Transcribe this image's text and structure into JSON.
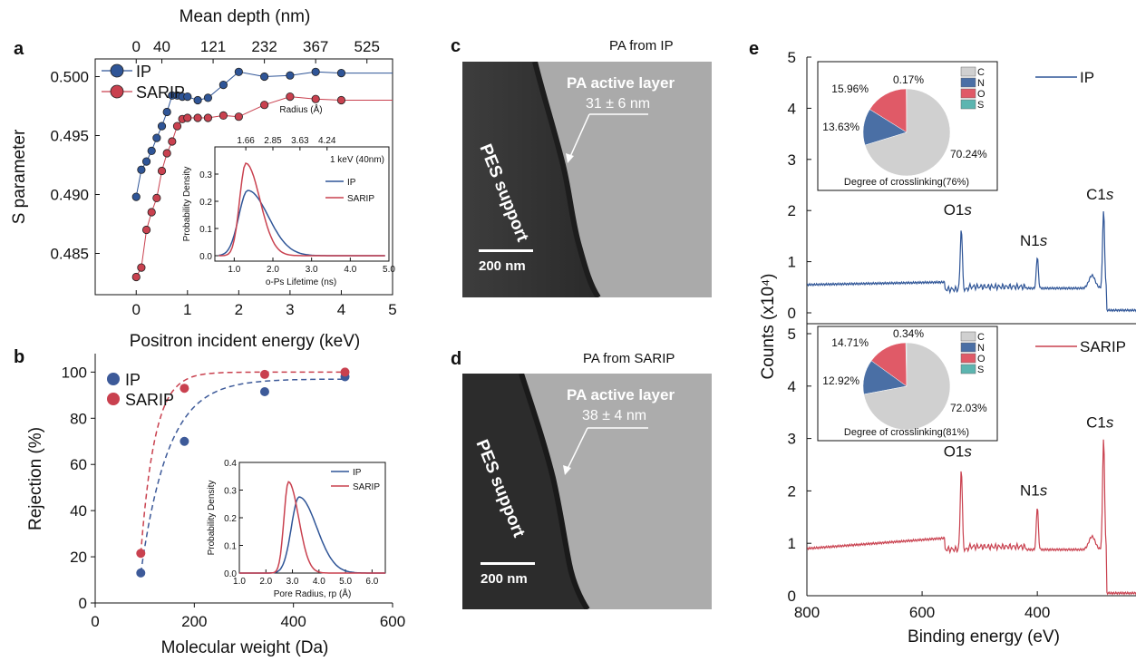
{
  "panels": {
    "a": {
      "letter": "a",
      "top_axis_label": "Mean depth (nm)",
      "top_ticks": [
        "0",
        "40",
        "121",
        "232",
        "367",
        "525"
      ],
      "xlabel": "Positron incident energy (keV)",
      "ylabel": "S parameter",
      "legend": [
        "IP",
        "SARIP"
      ]
    },
    "b": {
      "letter": "b",
      "xlabel": "Molecular weight (Da)",
      "ylabel": "Rejection (%)",
      "legend": [
        "IP",
        "SARIP"
      ]
    },
    "c": {
      "letter": "c",
      "title": "PA from IP",
      "layer_label": "PA active layer",
      "thickness": "31 ± 6 nm",
      "support": "PES support",
      "scale": "200 nm"
    },
    "d": {
      "letter": "d",
      "title": "PA from SARIP",
      "layer_label": "PA active layer",
      "thickness": "38 ± 4 nm",
      "support": "PES support",
      "scale": "200 nm"
    },
    "e": {
      "letter": "e",
      "xlabel": "Binding energy (eV)",
      "ylabel": "Counts (x10⁴)"
    }
  },
  "chart_data": [
    {
      "id": "a",
      "type": "scatter",
      "xlabel": "Positron incident energy (keV)",
      "ylabel": "S parameter",
      "xlim": [
        -0.8,
        5
      ],
      "ylim": [
        0.4815,
        0.5015
      ],
      "xticks": [
        0,
        1,
        2,
        3,
        4,
        5
      ],
      "yticks": [
        0.485,
        0.49,
        0.495,
        0.5
      ],
      "ytick_labels": [
        "0.485",
        "0.490",
        "0.495",
        "0.500"
      ],
      "series": [
        {
          "name": "IP",
          "color": "#2f5597",
          "x": [
            0,
            0.1,
            0.2,
            0.3,
            0.4,
            0.5,
            0.6,
            0.7,
            0.8,
            0.9,
            1.0,
            1.2,
            1.4,
            1.7,
            2.0,
            2.5,
            3.0,
            3.5,
            4.0
          ],
          "y": [
            0.4898,
            0.4921,
            0.4928,
            0.4937,
            0.4948,
            0.4958,
            0.497,
            0.4984,
            0.4984,
            0.4983,
            0.4983,
            0.498,
            0.4982,
            0.4993,
            0.5004,
            0.5,
            0.5001,
            0.5004,
            0.5003
          ]
        },
        {
          "name": "SARIP",
          "color": "#c9414f",
          "x": [
            0,
            0.1,
            0.2,
            0.3,
            0.4,
            0.5,
            0.6,
            0.7,
            0.8,
            0.9,
            1.0,
            1.2,
            1.4,
            1.7,
            2.0,
            2.5,
            3.0,
            3.5,
            4.0
          ],
          "y": [
            0.483,
            0.4838,
            0.487,
            0.4885,
            0.4897,
            0.492,
            0.4935,
            0.4945,
            0.4958,
            0.4964,
            0.4965,
            0.4965,
            0.4965,
            0.4967,
            0.4966,
            0.4976,
            0.4983,
            0.4981,
            0.498
          ]
        }
      ],
      "top_axis": {
        "label": "Mean depth (nm)",
        "energies": [
          0,
          0.5,
          1.5,
          2.5,
          3.5,
          4.5
        ],
        "labels": [
          "0",
          "40",
          "121",
          "232",
          "367",
          "525"
        ]
      },
      "inset": {
        "type": "line",
        "xlabel": "o-Ps Lifetime (ns)",
        "ylabel": "Probability Density",
        "top_label": "Radius (Å)",
        "top_ticks": {
          "positions": [
            1.3,
            2.0,
            2.7,
            3.4
          ],
          "labels": [
            "1.66",
            "2.85",
            "3.63",
            "4.24"
          ]
        },
        "annotation": "1 keV (40nm)",
        "xlim": [
          0.5,
          5.0
        ],
        "ylim": [
          -0.02,
          0.4
        ],
        "xticks": [
          1.0,
          2.0,
          3.0,
          4.0,
          5.0
        ],
        "xtick_labels": [
          "1.0",
          "2.0",
          "3.0",
          "4.0",
          "5.0"
        ],
        "yticks": [
          0.0,
          0.1,
          0.2,
          0.3
        ],
        "ytick_labels": [
          "0.0",
          "0.1",
          "0.2",
          "0.3"
        ],
        "series": [
          {
            "name": "IP",
            "color": "#2f5597",
            "peak_x": 1.35,
            "peak_y": 0.24,
            "width": 0.55
          },
          {
            "name": "SARIP",
            "color": "#c9414f",
            "peak_x": 1.3,
            "peak_y": 0.34,
            "width": 0.38
          }
        ]
      }
    },
    {
      "id": "b",
      "type": "scatter",
      "xlabel": "Molecular weight (Da)",
      "ylabel": "Rejection (%)",
      "xlim": [
        0,
        600
      ],
      "ylim": [
        0,
        108
      ],
      "xticks": [
        0,
        200,
        400,
        600
      ],
      "yticks": [
        0,
        20,
        40,
        60,
        80,
        100
      ],
      "series": [
        {
          "name": "IP",
          "color": "#3d5a99",
          "x": [
            92,
            180,
            342,
            504
          ],
          "y": [
            13,
            70,
            91.5,
            98
          ]
        },
        {
          "name": "SARIP",
          "color": "#c9414f",
          "x": [
            92,
            180,
            342,
            504
          ],
          "y": [
            21.5,
            93,
            99,
            100
          ]
        }
      ],
      "inset": {
        "type": "line",
        "xlabel": "Pore Radius, rp (Å)",
        "ylabel": "Probability Density",
        "xlim": [
          1.0,
          6.5
        ],
        "ylim": [
          0.0,
          0.4
        ],
        "xticks": [
          1.0,
          2.0,
          3.0,
          4.0,
          5.0,
          6.0
        ],
        "xtick_labels": [
          "1.0",
          "2.0",
          "3.0",
          "4.0",
          "5.0",
          "6.0"
        ],
        "yticks": [
          0.0,
          0.1,
          0.2,
          0.3,
          0.4
        ],
        "ytick_labels": [
          "0.0",
          "0.1",
          "0.2",
          "0.3",
          "0.4"
        ],
        "series": [
          {
            "name": "IP",
            "color": "#2f5597",
            "peak_x": 3.25,
            "peak_y": 0.275,
            "width": 0.55
          },
          {
            "name": "SARIP",
            "color": "#c9414f",
            "peak_x": 2.85,
            "peak_y": 0.33,
            "width": 0.32
          }
        ]
      }
    },
    {
      "id": "e",
      "type": "line",
      "xlabel": "Binding energy (eV)",
      "ylabel": "Counts (x10⁴)",
      "xlim": [
        800,
        150
      ],
      "xticks": [
        800,
        600,
        400,
        200
      ],
      "yticks": [
        0,
        1,
        2,
        3,
        4,
        5
      ],
      "series": [
        {
          "name": "IP",
          "color": "#2f5597",
          "peaks": [
            {
              "label": "O1s",
              "x": 532,
              "y": 1.7
            },
            {
              "label": "N1s",
              "x": 400,
              "y": 1.1
            },
            {
              "label": "C1s",
              "x": 285,
              "y": 2.0
            }
          ],
          "baseline": [
            0.55,
            0.6
          ]
        },
        {
          "name": "SARIP",
          "color": "#c9414f",
          "peaks": [
            {
              "label": "O1s",
              "x": 532,
              "y": 2.45
            },
            {
              "label": "N1s",
              "x": 400,
              "y": 1.7
            },
            {
              "label": "C1s",
              "x": 285,
              "y": 3.0
            }
          ],
          "baseline": [
            0.9,
            1.1
          ]
        }
      ],
      "pies": [
        {
          "title": "Degree of crosslinking(76%)",
          "labels": [
            "C",
            "N",
            "O",
            "S"
          ],
          "values": [
            70.24,
            13.63,
            15.96,
            0.17
          ],
          "value_labels": [
            "70.24%",
            "13.63%",
            "15.96%",
            "0.17%"
          ]
        },
        {
          "title": "Degree of crosslinking(81%)",
          "labels": [
            "C",
            "N",
            "O",
            "S"
          ],
          "values": [
            72.03,
            12.92,
            14.71,
            0.34
          ],
          "value_labels": [
            "72.03%",
            "12.92%",
            "14.71%",
            "0.34%"
          ]
        }
      ],
      "pie_colors": [
        "#d0d0d0",
        "#4a6fa5",
        "#e05a67",
        "#5cb5b0"
      ]
    }
  ]
}
